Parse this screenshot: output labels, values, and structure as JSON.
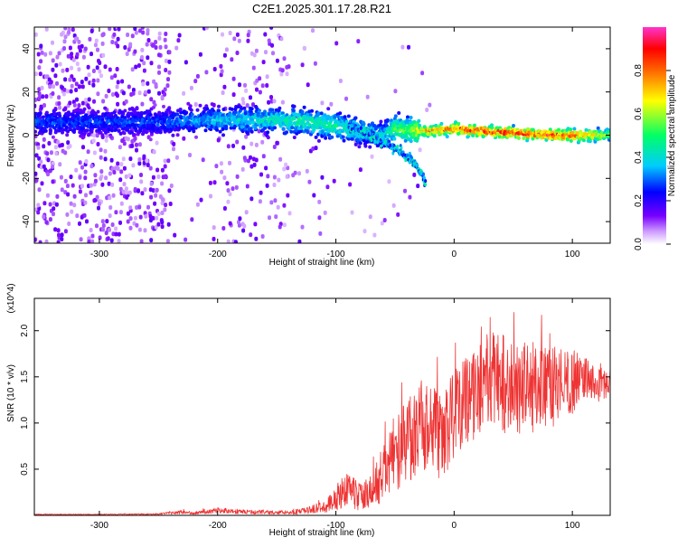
{
  "chart_data": [
    {
      "type": "heatmap",
      "title": "C2E1.2025.301.17.28.R21",
      "xlabel": "Height of straight line (km)",
      "ylabel": "Frequency (Hz)",
      "xlim": [
        -355,
        132
      ],
      "ylim": [
        -50,
        50
      ],
      "x_ticks": [
        -300,
        -200,
        -100,
        0,
        100
      ],
      "y_ticks": [
        -40,
        -20,
        0,
        20,
        40
      ],
      "colorbar": {
        "label": "Normalized spectral amplitude",
        "range": [
          0,
          1
        ],
        "ticks": [
          "0.0",
          "0.2",
          "0.4",
          "0.6",
          "0.8"
        ],
        "colors": [
          "#ffffff",
          "#cc99ff",
          "#7700ff",
          "#0000ff",
          "#00ccff",
          "#00ff66",
          "#ffff00",
          "#ff6600",
          "#ff0000",
          "#ff33cc"
        ]
      },
      "trace": {
        "x": [
          -355,
          -300,
          -250,
          -220,
          -200,
          -150,
          -120,
          -100,
          -80,
          -60,
          -50,
          -40,
          -30,
          -20,
          0,
          20,
          50,
          80,
          100,
          132
        ],
        "freq": [
          6,
          6,
          6,
          7,
          7,
          7,
          6,
          4,
          2,
          0,
          3,
          2,
          2,
          2,
          3,
          2,
          1,
          0,
          0,
          0
        ],
        "amplitude": [
          0.3,
          0.3,
          0.3,
          0.35,
          0.4,
          0.45,
          0.5,
          0.5,
          0.45,
          0.4,
          0.55,
          0.6,
          0.7,
          0.8,
          0.85,
          0.9,
          0.92,
          0.9,
          0.88,
          0.6
        ]
      },
      "branch": {
        "x": [
          -90,
          -70,
          -50,
          -40,
          -30,
          -25
        ],
        "freq": [
          4,
          0,
          -6,
          -10,
          -16,
          -22
        ]
      }
    },
    {
      "type": "line",
      "title": "",
      "xlabel": "Height of straight line (km)",
      "ylabel": "SNR (10 * v/v)",
      "y_multiplier": "(x10^4)",
      "xlim": [
        -355,
        132
      ],
      "ylim": [
        0,
        23500
      ],
      "x_ticks": [
        -300,
        -200,
        -100,
        0,
        100
      ],
      "y_ticks": [
        5000,
        10000,
        15000,
        20000
      ],
      "y_tick_labels": [
        "0.5",
        "1.0",
        "1.5",
        "2.0"
      ],
      "color": "#ee3333",
      "series": [
        {
          "x": [
            -355,
            -300,
            -250,
            -230,
            -220,
            -200,
            -180,
            -150,
            -130,
            -110,
            -100,
            -90,
            -80,
            -70,
            -60,
            -50,
            -40,
            -30,
            -20,
            -10,
            0,
            10,
            20,
            30,
            40,
            50,
            60,
            70,
            80,
            90,
            100,
            110,
            120,
            132
          ],
          "values": [
            100,
            100,
            150,
            350,
            250,
            550,
            400,
            300,
            400,
            900,
            1800,
            3000,
            2000,
            2500,
            4500,
            6500,
            8000,
            9500,
            10000,
            8000,
            11000,
            12500,
            13500,
            15000,
            14500,
            13500,
            14000,
            14000,
            13500,
            14500,
            14500,
            15000,
            14000,
            14500
          ],
          "spread": [
            50,
            50,
            80,
            200,
            150,
            300,
            250,
            200,
            300,
            600,
            1500,
            2000,
            1500,
            2000,
            3000,
            4000,
            4500,
            5000,
            5000,
            4500,
            5000,
            5000,
            5000,
            5500,
            5500,
            5000,
            5000,
            5000,
            4500,
            4000,
            3500,
            2500,
            2000,
            1500
          ]
        }
      ]
    }
  ]
}
